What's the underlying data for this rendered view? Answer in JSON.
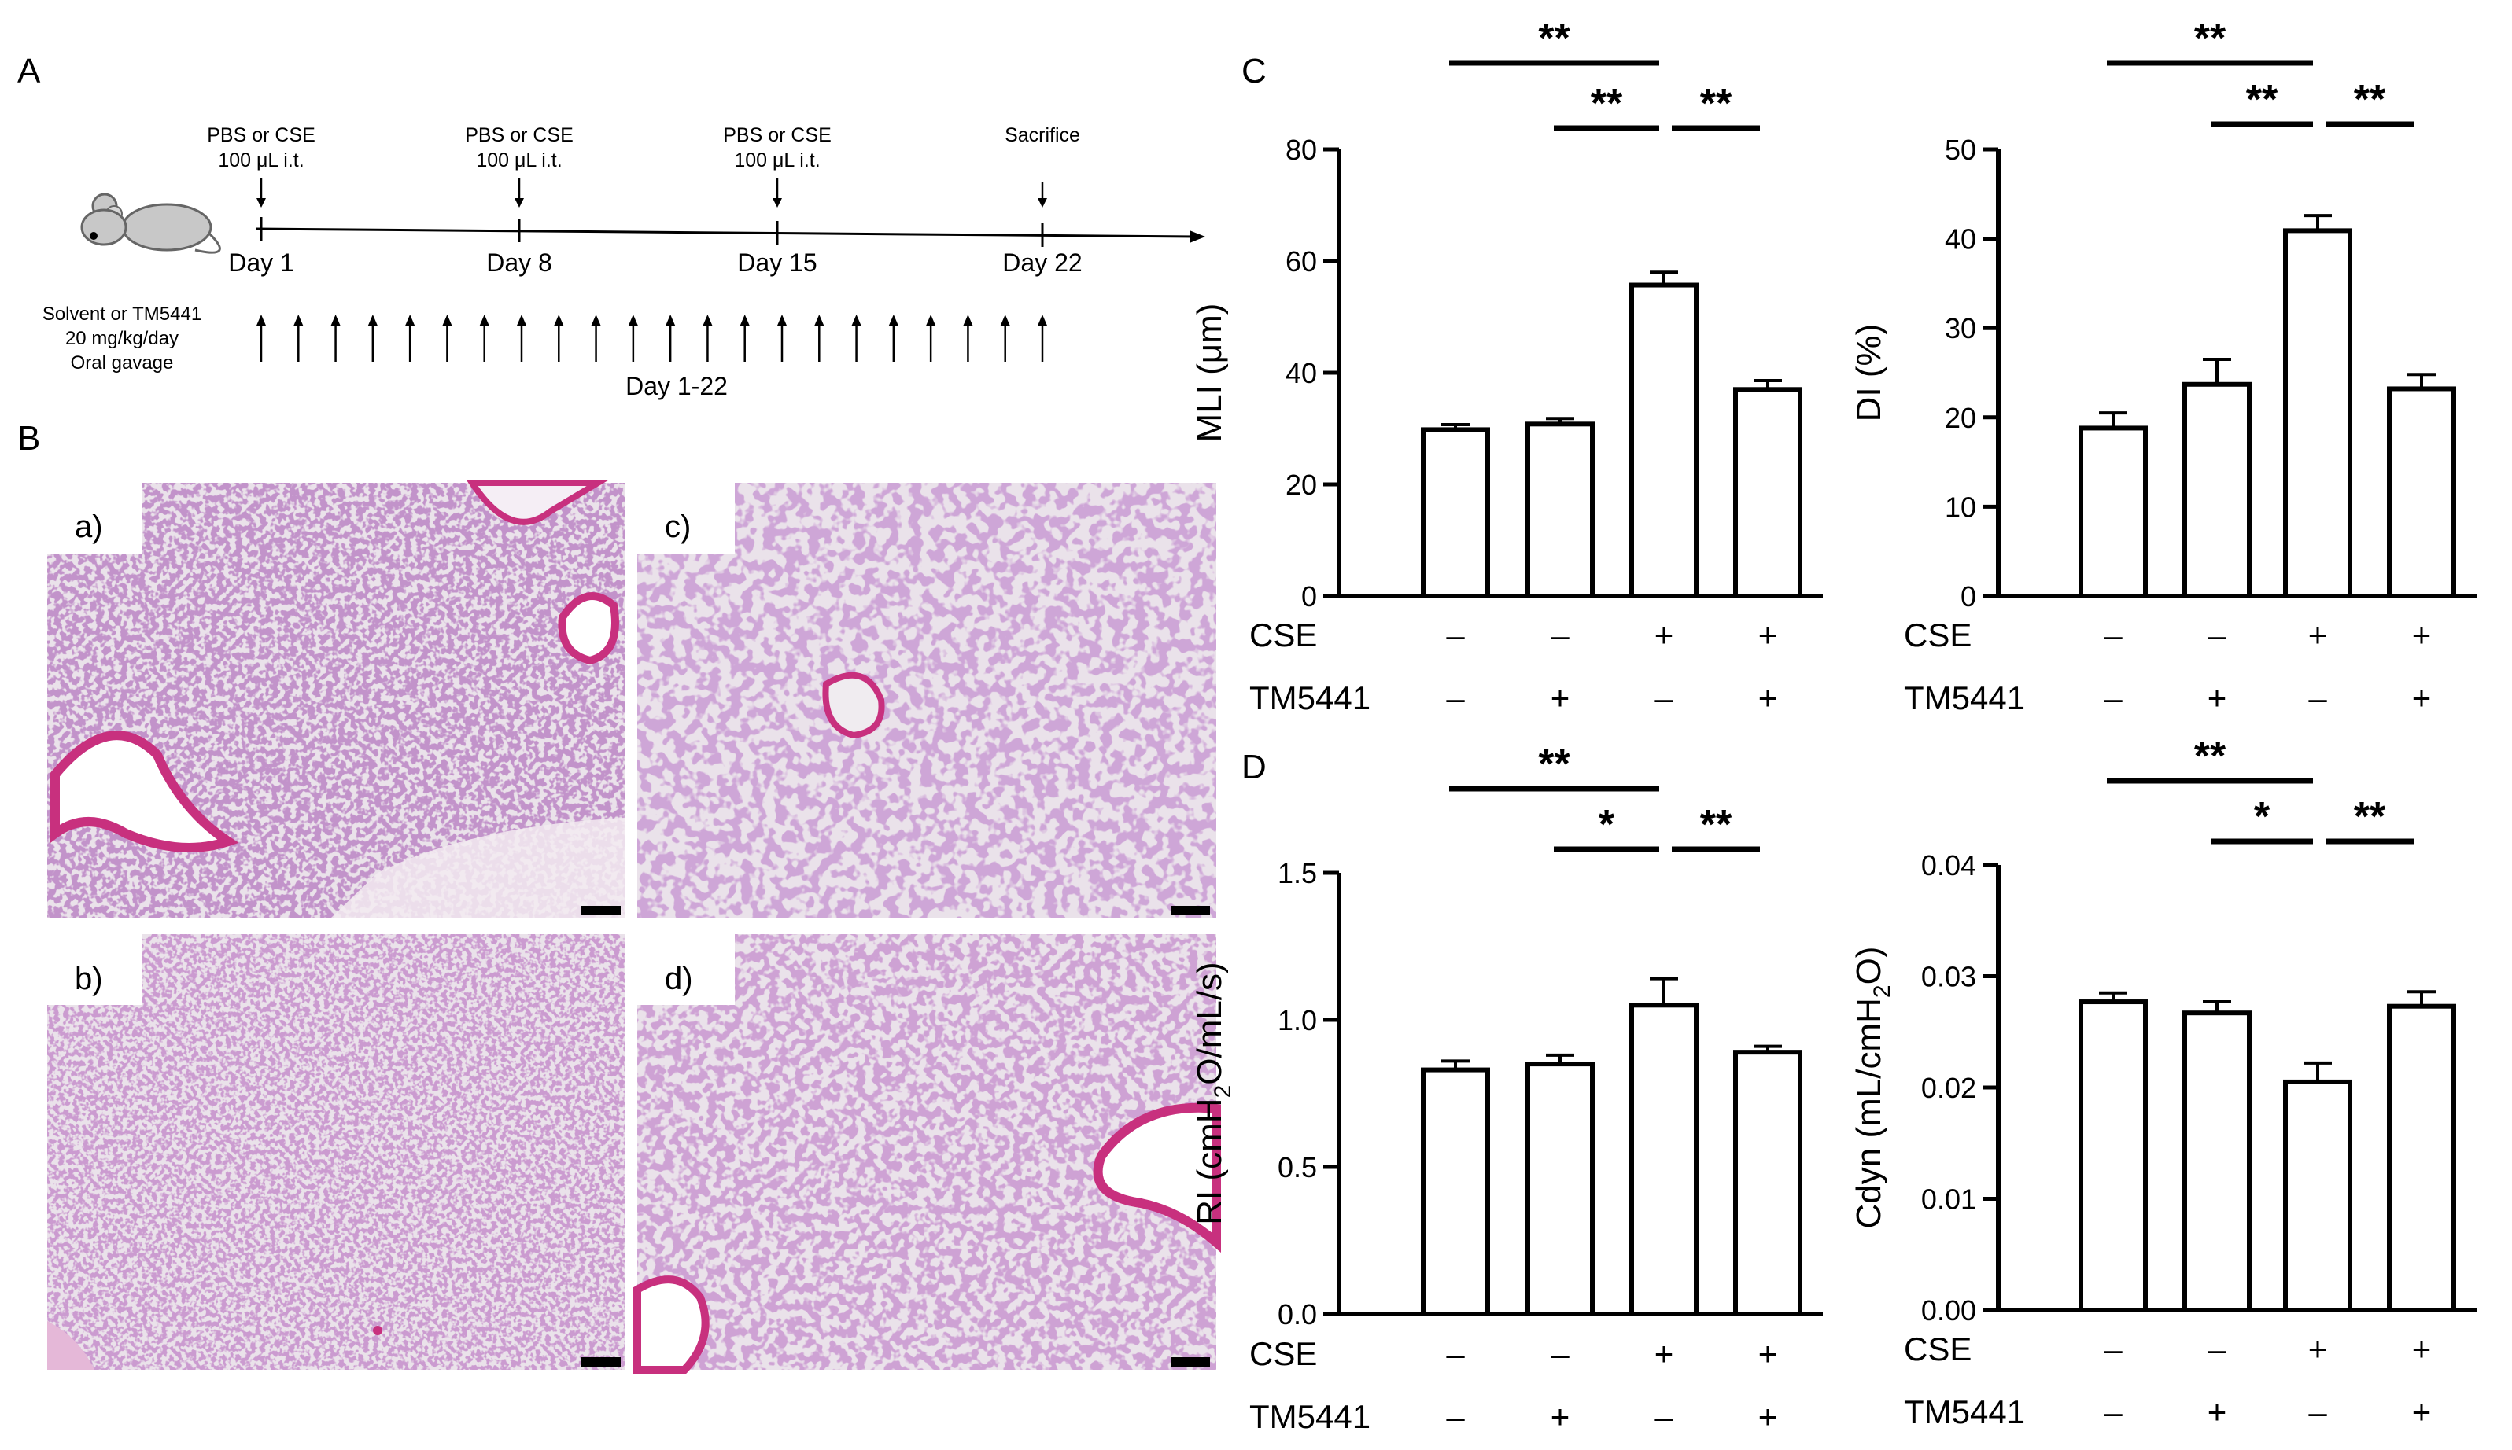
{
  "panel_labels": {
    "A": "A",
    "B": "B",
    "C": "C",
    "D": "D"
  },
  "timeline": {
    "events": [
      {
        "top": "PBS or CSE",
        "sub": "100 μL i.t.",
        "day": "Day 1"
      },
      {
        "top": "PBS or CSE",
        "sub": "100 μL i.t.",
        "day": "Day 8"
      },
      {
        "top": "PBS or CSE",
        "sub": "100 μL i.t.",
        "day": "Day 15"
      },
      {
        "top": "Sacrifice",
        "sub": "",
        "day": "Day 22"
      }
    ],
    "treatment": [
      "Solvent or TM5441",
      "20 mg/kg/day",
      "Oral gavage"
    ],
    "dosing_range": "Day 1-22",
    "dose_arrow_count": 22
  },
  "histology": {
    "labels": [
      "a)",
      "b)",
      "c)",
      "d)"
    ],
    "colors": {
      "background": "#eae2ea",
      "tissue": "#8a4a96",
      "airway": "#c8307e"
    }
  },
  "conditions": {
    "row_labels": [
      "CSE",
      "TM5441"
    ],
    "CSE": [
      "–",
      "–",
      "+",
      "+"
    ],
    "TM5441": [
      "–",
      "+",
      "–",
      "+"
    ]
  },
  "chart_data": [
    {
      "id": "MLI",
      "type": "bar",
      "panel": "C",
      "ylabel": "MLI (μm)",
      "ylim": [
        0,
        80
      ],
      "yticks": [
        "0",
        "20",
        "40",
        "60",
        "80"
      ],
      "values": [
        29.8,
        30.8,
        55.7,
        37.0
      ],
      "errors": [
        0.9,
        1.0,
        2.3,
        1.6
      ],
      "significance": [
        {
          "from": 1,
          "to": 3,
          "label": "**"
        },
        {
          "from": 2,
          "to": 3,
          "label": "**"
        },
        {
          "from": 3,
          "to": 4,
          "label": "**"
        }
      ]
    },
    {
      "id": "DI",
      "type": "bar",
      "panel": "C",
      "ylabel": "DI (%)",
      "ylim": [
        0,
        50
      ],
      "yticks": [
        "0",
        "10",
        "20",
        "30",
        "40",
        "50"
      ],
      "values": [
        18.8,
        23.7,
        40.9,
        23.2
      ],
      "errors": [
        1.7,
        2.8,
        1.7,
        1.6
      ],
      "significance": [
        {
          "from": 1,
          "to": 3,
          "label": "**"
        },
        {
          "from": 2,
          "to": 3,
          "label": "**"
        },
        {
          "from": 3,
          "to": 4,
          "label": "**"
        }
      ]
    },
    {
      "id": "RI",
      "type": "bar",
      "panel": "D",
      "ylabel_parts": [
        "RI (cmH",
        "2",
        "O/mL/s)"
      ],
      "ylim": [
        0,
        1.5
      ],
      "yticks": [
        "0.0",
        "0.5",
        "1.0",
        "1.5"
      ],
      "values": [
        0.83,
        0.85,
        1.05,
        0.89
      ],
      "errors": [
        0.03,
        0.03,
        0.09,
        0.02
      ],
      "significance": [
        {
          "from": 1,
          "to": 3,
          "label": "**"
        },
        {
          "from": 2,
          "to": 3,
          "label": "*"
        },
        {
          "from": 3,
          "to": 4,
          "label": "**"
        }
      ]
    },
    {
      "id": "Cdyn",
      "type": "bar",
      "panel": "D",
      "ylabel_parts": [
        "Cdyn (mL/cmH",
        "2",
        "O)"
      ],
      "ylim": [
        0,
        0.04
      ],
      "yticks": [
        "0.00",
        "0.01",
        "0.02",
        "0.03",
        "0.04"
      ],
      "values": [
        0.0277,
        0.0267,
        0.0205,
        0.0273
      ],
      "errors": [
        0.0008,
        0.001,
        0.0017,
        0.0013
      ],
      "significance": [
        {
          "from": 1,
          "to": 3,
          "label": "**"
        },
        {
          "from": 2,
          "to": 3,
          "label": "*"
        },
        {
          "from": 3,
          "to": 4,
          "label": "**"
        }
      ]
    }
  ]
}
